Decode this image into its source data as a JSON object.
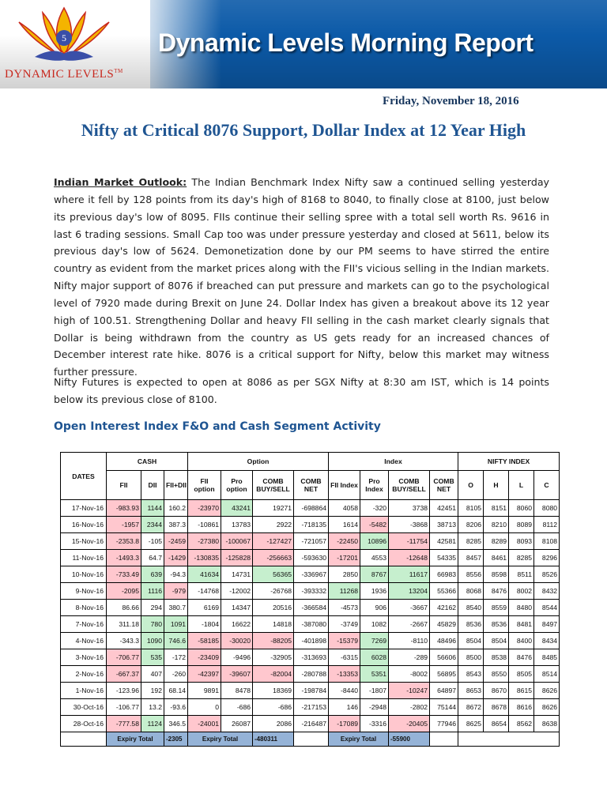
{
  "header": {
    "title": "Dynamic Levels Morning Report",
    "logo_text": "DYNAMIC LEVELS",
    "logo_tm": "TM",
    "logo_digit": "5"
  },
  "report": {
    "date": "Friday, November 18, 2016",
    "headline": "Nifty at Critical 8076 Support, Dollar Index at 12 Year High",
    "outlook_label": "Indian Market Outlook:",
    "outlook_text": " The Indian Benchmark Index Nifty saw a continued selling yesterday where it fell by 128 points from its day's high of 8168 to 8040, to finally close at 8100, just below its previous day's low of 8095. FIIs continue their selling spree with a total sell worth Rs. 9616 in last 6 trading sessions.  Small Cap too was under pressure yesterday and closed at 5611, below its previous day's low of 5624. Demonetization done by our PM seems to have stirred the entire country as evident from the market prices along with the FII's vicious selling in the Indian markets. Nifty major support of 8076 if breached can put pressure and markets can go to the psychological level of 7920 made during Brexit on June 24. Dollar Index has given a breakout above its 12 year high of 100.51. Strengthening Dollar and heavy FII selling in the cash market clearly signals that Dollar is being withdrawn from the country as US gets ready for an increased chances of December interest rate hike. 8076 is a critical support for Nifty, below this market may witness further pressure.",
    "futures_text": " Nifty Futures is expected to open at 8086 as per SGX Nifty at 8:30 am IST, which is 14 points below its previous close of 8100.",
    "section_title": "Open Interest Index F&O and Cash Segment Activity"
  },
  "table": {
    "groups": {
      "dates": "DATES",
      "cash": "CASH",
      "option": "Option",
      "index": "Index",
      "nifty": "NIFTY INDEX"
    },
    "subheaders": [
      "FII",
      "DII",
      "FII+DII",
      "FII option",
      "Pro option",
      "COMB BUY/SELL",
      "COMB NET",
      "FII Index",
      "Pro Index",
      "COMB BUY/SELL",
      "COMB NET",
      "O",
      "H",
      "L",
      "C"
    ],
    "colors": {
      "positive": "#c6efce",
      "negative": "#ffc7ce",
      "totals": "#95b3d7"
    },
    "rows": [
      {
        "cells": [
          "17-Nov-16",
          "-983.93",
          "1144",
          "160.2",
          "-23970",
          "43241",
          "19271",
          "-698864",
          "4058",
          "-320",
          "3738",
          "42451",
          "8105",
          "8151",
          "8060",
          "8080"
        ],
        "flags": [
          "",
          "r",
          "g",
          "",
          "r",
          "g",
          "",
          "",
          "",
          "",
          "",
          "",
          "",
          "",
          "",
          ""
        ]
      },
      {
        "cells": [
          "16-Nov-16",
          "-1957",
          "2344",
          "387.3",
          "-10861",
          "13783",
          "2922",
          "-718135",
          "1614",
          "-5482",
          "-3868",
          "38713",
          "8206",
          "8210",
          "8089",
          "8112"
        ],
        "flags": [
          "",
          "r",
          "g",
          "",
          "",
          "",
          "",
          "",
          "",
          "r",
          "",
          "",
          "",
          "",
          "",
          ""
        ]
      },
      {
        "cells": [
          "15-Nov-16",
          "-2353.8",
          "-105",
          "-2459",
          "-27380",
          "-100067",
          "-127427",
          "-721057",
          "-22450",
          "10896",
          "-11754",
          "42581",
          "8285",
          "8289",
          "8093",
          "8108"
        ],
        "flags": [
          "",
          "r",
          "",
          "r",
          "r",
          "r",
          "r",
          "",
          "r",
          "g",
          "r",
          "",
          "",
          "",
          "",
          ""
        ]
      },
      {
        "cells": [
          "11-Nov-16",
          "-1493.3",
          "64.7",
          "-1429",
          "-130835",
          "-125828",
          "-256663",
          "-593630",
          "-17201",
          "4553",
          "-12648",
          "54335",
          "8457",
          "8461",
          "8285",
          "8296"
        ],
        "flags": [
          "",
          "r",
          "",
          "r",
          "r",
          "r",
          "r",
          "",
          "r",
          "",
          "r",
          "",
          "",
          "",
          "",
          ""
        ]
      },
      {
        "cells": [
          "10-Nov-16",
          "-733.49",
          "639",
          "-94.3",
          "41634",
          "14731",
          "56365",
          "-336967",
          "2850",
          "8767",
          "11617",
          "66983",
          "8556",
          "8598",
          "8511",
          "8526"
        ],
        "flags": [
          "",
          "r",
          "g",
          "",
          "g",
          "",
          "g",
          "",
          "",
          "g",
          "g",
          "",
          "",
          "",
          "",
          ""
        ]
      },
      {
        "cells": [
          "9-Nov-16",
          "-2095",
          "1116",
          "-979",
          "-14768",
          "-12002",
          "-26768",
          "-393332",
          "11268",
          "1936",
          "13204",
          "55366",
          "8068",
          "8476",
          "8002",
          "8432"
        ],
        "flags": [
          "",
          "r",
          "g",
          "r",
          "",
          "",
          "",
          "",
          "g",
          "",
          "g",
          "",
          "",
          "",
          "",
          ""
        ]
      },
      {
        "cells": [
          "8-Nov-16",
          "86.66",
          "294",
          "380.7",
          "6169",
          "14347",
          "20516",
          "-366584",
          "-4573",
          "906",
          "-3667",
          "42162",
          "8540",
          "8559",
          "8480",
          "8544"
        ],
        "flags": [
          "",
          "",
          "",
          "",
          "",
          "",
          "",
          "",
          "",
          "",
          "",
          "",
          "",
          "",
          "",
          ""
        ]
      },
      {
        "cells": [
          "7-Nov-16",
          "311.18",
          "780",
          "1091",
          "-1804",
          "16622",
          "14818",
          "-387080",
          "-3749",
          "1082",
          "-2667",
          "45829",
          "8536",
          "8536",
          "8481",
          "8497"
        ],
        "flags": [
          "",
          "",
          "g",
          "g",
          "",
          "",
          "",
          "",
          "",
          "",
          "",
          "",
          "",
          "",
          "",
          ""
        ]
      },
      {
        "cells": [
          "4-Nov-16",
          "-343.3",
          "1090",
          "746.6",
          "-58185",
          "-30020",
          "-88205",
          "-401898",
          "-15379",
          "7269",
          "-8110",
          "48496",
          "8504",
          "8504",
          "8400",
          "8434"
        ],
        "flags": [
          "",
          "",
          "g",
          "g",
          "r",
          "r",
          "r",
          "",
          "r",
          "g",
          "",
          "",
          "",
          "",
          "",
          ""
        ]
      },
      {
        "cells": [
          "3-Nov-16",
          "-706.77",
          "535",
          "-172",
          "-23409",
          "-9496",
          "-32905",
          "-313693",
          "-6315",
          "6028",
          "-289",
          "56606",
          "8500",
          "8538",
          "8476",
          "8485"
        ],
        "flags": [
          "",
          "r",
          "g",
          "",
          "r",
          "",
          "",
          "",
          "",
          "g",
          "",
          "",
          "",
          "",
          "",
          ""
        ]
      },
      {
        "cells": [
          "2-Nov-16",
          "-667.37",
          "407",
          "-260",
          "-42397",
          "-39607",
          "-82004",
          "-280788",
          "-13353",
          "5351",
          "-8002",
          "56895",
          "8543",
          "8550",
          "8505",
          "8514"
        ],
        "flags": [
          "",
          "r",
          "",
          "",
          "r",
          "r",
          "r",
          "",
          "r",
          "g",
          "",
          "",
          "",
          "",
          "",
          ""
        ]
      },
      {
        "cells": [
          "1-Nov-16",
          "-123.96",
          "192",
          "68.14",
          "9891",
          "8478",
          "18369",
          "-198784",
          "-8440",
          "-1807",
          "-10247",
          "64897",
          "8653",
          "8670",
          "8615",
          "8626"
        ],
        "flags": [
          "",
          "",
          "",
          "",
          "",
          "",
          "",
          "",
          "",
          "",
          "r",
          "",
          "",
          "",
          "",
          ""
        ]
      },
      {
        "cells": [
          "30-Oct-16",
          "-106.77",
          "13.2",
          "-93.6",
          "0",
          "-686",
          "-686",
          "-217153",
          "146",
          "-2948",
          "-2802",
          "75144",
          "8672",
          "8678",
          "8616",
          "8626"
        ],
        "flags": [
          "",
          "",
          "",
          "",
          "",
          "",
          "",
          "",
          "",
          "",
          "",
          "",
          "",
          "",
          "",
          ""
        ]
      },
      {
        "cells": [
          "28-Oct-16",
          "-777.58",
          "1124",
          "346.5",
          "-24001",
          "26087",
          "2086",
          "-216487",
          "-17089",
          "-3316",
          "-20405",
          "77946",
          "8625",
          "8654",
          "8562",
          "8638"
        ],
        "flags": [
          "",
          "r",
          "g",
          "",
          "r",
          "",
          "",
          "",
          "r",
          "",
          "r",
          "",
          "",
          "",
          "",
          ""
        ]
      }
    ],
    "totals": {
      "cash_label": "Expiry Total",
      "cash_value": "-2305",
      "option_label": "Expiry Total",
      "option_value": "-480311",
      "index_label": "Expiry Total",
      "index_value": "-55900"
    }
  }
}
